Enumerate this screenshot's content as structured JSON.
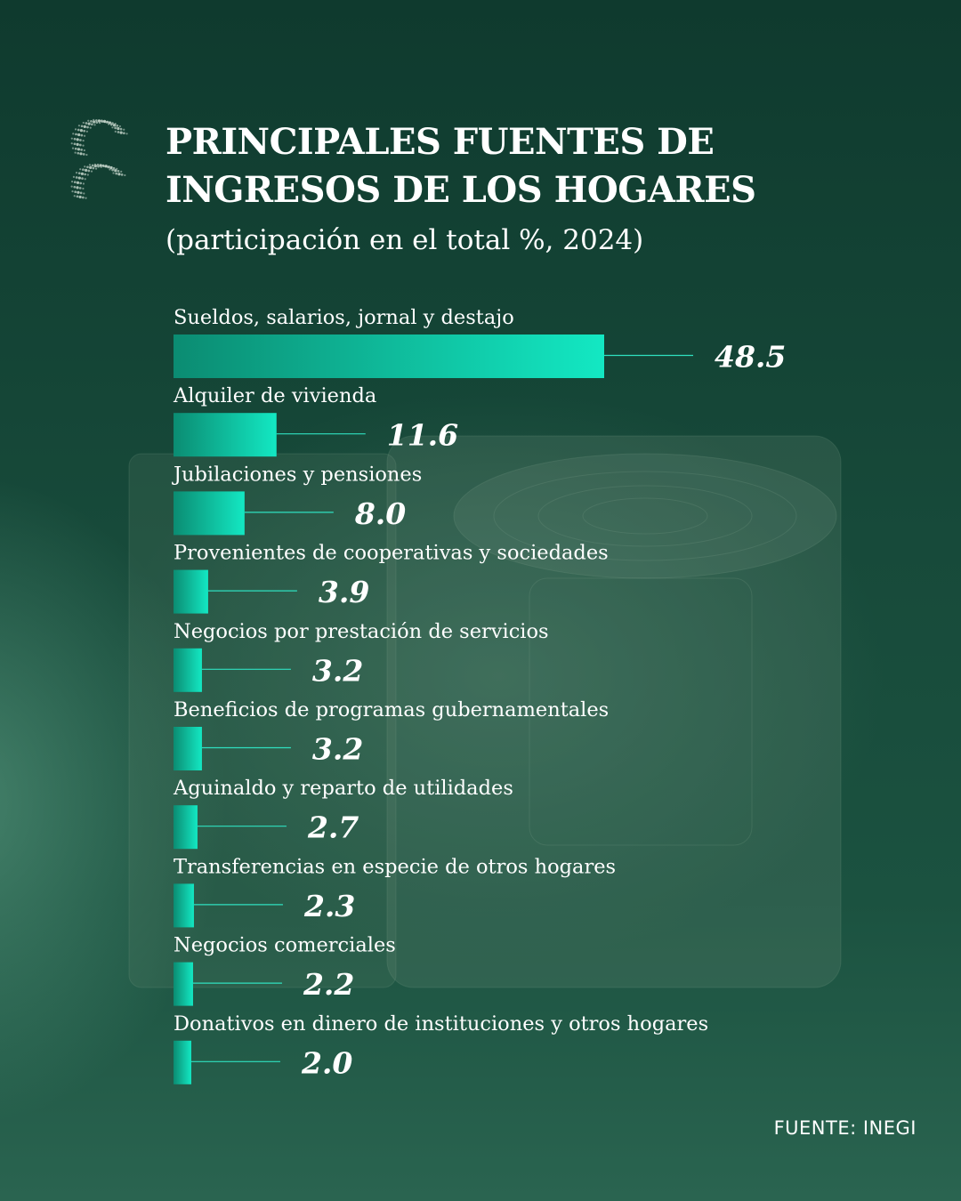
{
  "header": {
    "title": "PRINCIPALES FUENTES DE INGRESOS DE LOS HOGARES",
    "subtitle": "(participación en el total %, 2024)"
  },
  "footer": {
    "source": "FUENTE: INEGI"
  },
  "colors": {
    "bar_start": "#0b8c72",
    "bar_end": "#13e8c3",
    "leader_line": "#2fe0c0",
    "text": "#ffffff"
  },
  "chart_data": {
    "type": "bar",
    "orientation": "horizontal",
    "title": "PRINCIPALES FUENTES DE INGRESOS DE LOS HOGARES",
    "subtitle": "(participación en el total %, 2024)",
    "categories": [
      "Sueldos, salarios, jornal y destajo",
      "Alquiler de vivienda",
      "Jubilaciones y pensiones",
      "Provenientes de cooperativas y sociedades",
      "Negocios por prestación de servicios",
      "Beneficios de programas gubernamentales",
      "Aguinaldo y reparto de utilidades",
      "Transferencias en especie de otros hogares",
      "Negocios comerciales",
      "Donativos en dinero de instituciones y otros hogares"
    ],
    "values": [
      48.5,
      11.6,
      8.0,
      3.9,
      3.2,
      3.2,
      2.7,
      2.3,
      2.2,
      2.0
    ],
    "value_labels": [
      "48.5",
      "11.6",
      "8.0",
      "3.9",
      "3.2",
      "3.2",
      "2.7",
      "2.3",
      "2.2",
      "2.0"
    ],
    "xlim": [
      0,
      48.5
    ],
    "xlabel": "",
    "ylabel": "",
    "grid": false,
    "legend": "none"
  }
}
